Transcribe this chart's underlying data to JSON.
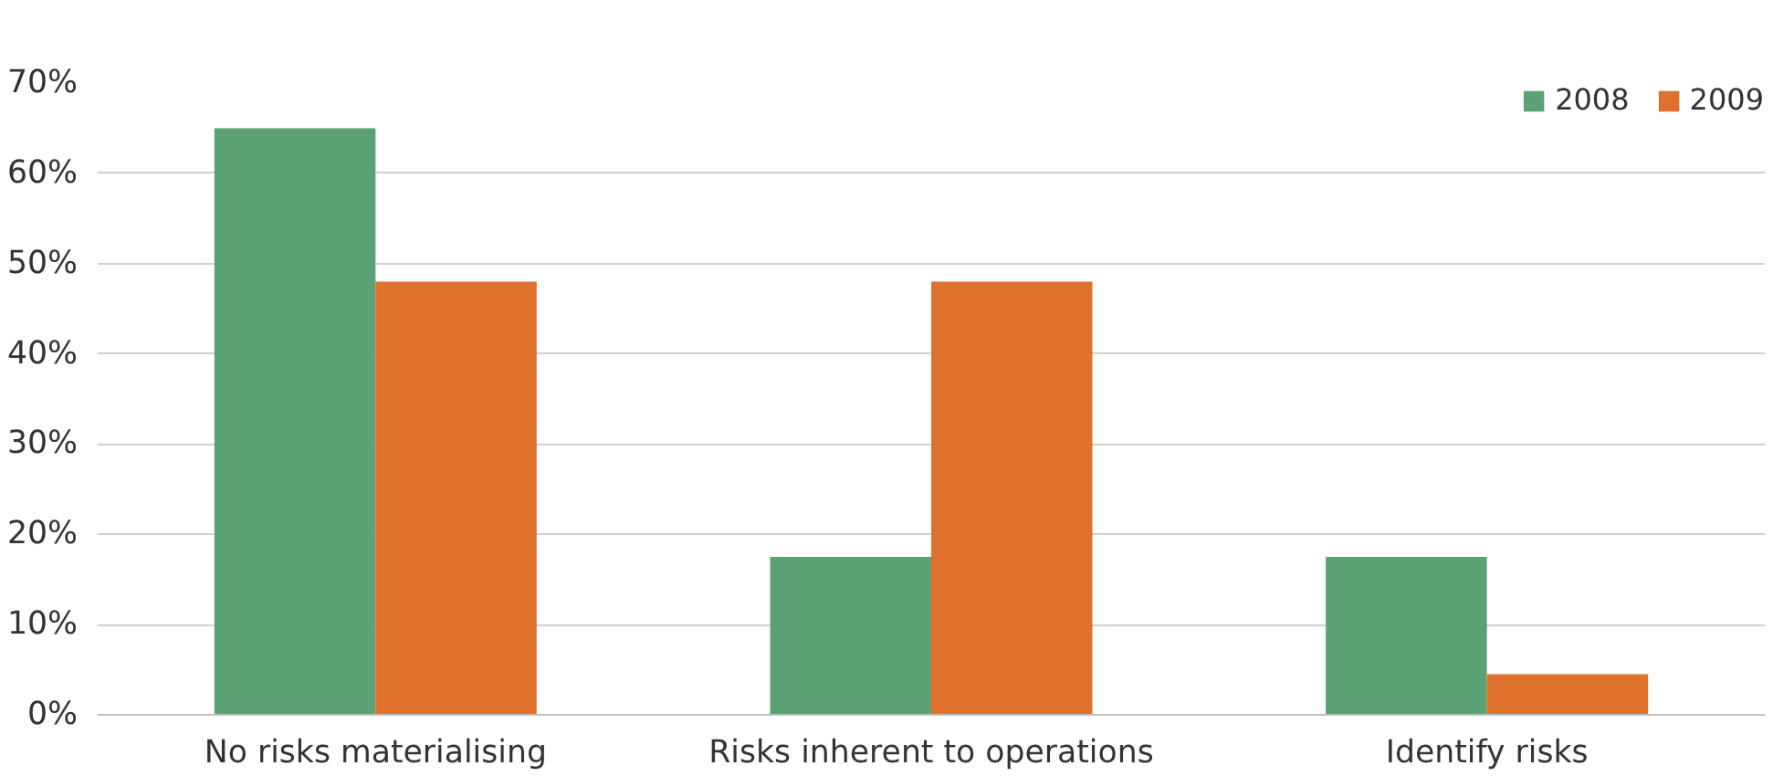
{
  "chart_data": {
    "type": "bar",
    "categories": [
      "No risks materialising",
      "Risks inherent to operations",
      "Identify risks"
    ],
    "series": [
      {
        "name": "2008",
        "color": "#5ba174",
        "values": [
          65,
          17.5,
          17.5
        ]
      },
      {
        "name": "2009",
        "color": "#e0712c",
        "values": [
          48,
          48,
          4.5
        ]
      }
    ],
    "ylim": [
      0,
      70
    ],
    "yticks": [
      {
        "value": 0,
        "label": "0%"
      },
      {
        "value": 10,
        "label": "10%"
      },
      {
        "value": 20,
        "label": "20%"
      },
      {
        "value": 30,
        "label": "30%"
      },
      {
        "value": 40,
        "label": "40%"
      },
      {
        "value": 50,
        "label": "50%"
      },
      {
        "value": 60,
        "label": "60%"
      },
      {
        "value": 70,
        "label": "70%"
      }
    ],
    "grid": "y",
    "legend": "top right"
  }
}
